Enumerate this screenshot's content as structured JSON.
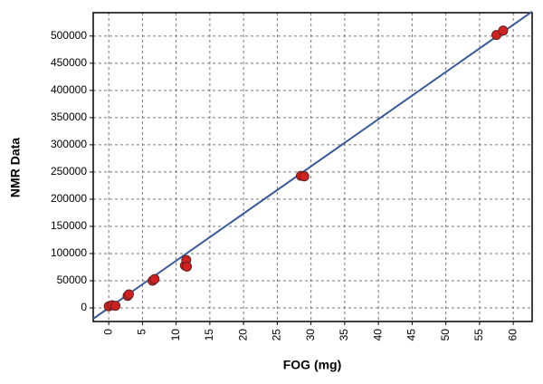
{
  "chart_data": {
    "type": "scatter",
    "x_label": "FOG (mg)",
    "y_label": "NMR Data",
    "series": [
      {
        "color": "#d02020",
        "x": [
          0,
          0.5,
          1,
          2.8,
          3,
          6.5,
          6.8,
          11.3,
          11.5,
          11.6,
          28.5,
          29,
          57.5,
          58.5
        ],
        "values": [
          3000,
          5000,
          4000,
          22000,
          25000,
          50000,
          53000,
          78000,
          88000,
          76000,
          243000,
          242000,
          502000,
          510000
        ]
      }
    ],
    "trend_line": {
      "color": "#3a5a9a",
      "x": [
        -2.3,
        62.8
      ],
      "values": [
        -20000,
        545000
      ]
    },
    "xlim": [
      -2.3,
      62.8
    ],
    "ylim": [
      -25000,
      543000
    ],
    "xticks": [
      0,
      5,
      10,
      15,
      20,
      25,
      30,
      35,
      40,
      45,
      50,
      55,
      60
    ],
    "yticks": [
      0,
      50000,
      100000,
      150000,
      200000,
      250000,
      300000,
      350000,
      400000,
      450000,
      500000
    ],
    "grid": true
  }
}
